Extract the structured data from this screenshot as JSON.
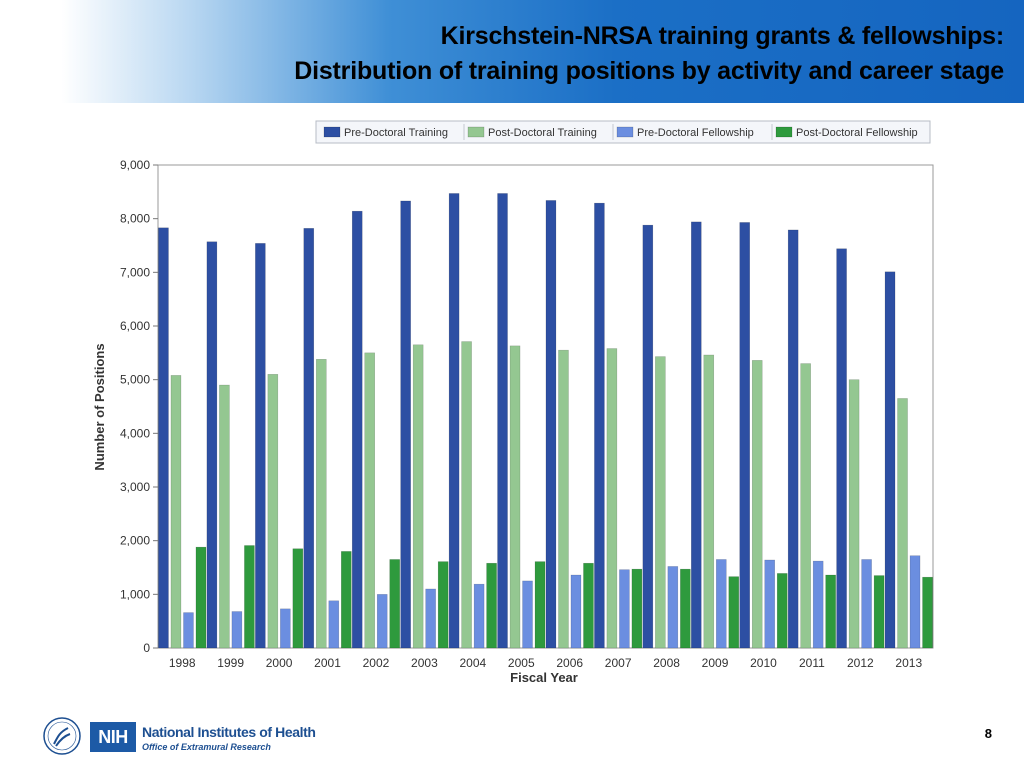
{
  "header": {
    "title_line1": "Kirschstein-NRSA training grants & fellowships:",
    "title_line2": "Distribution of training positions by activity and career stage"
  },
  "chart_data": {
    "type": "bar",
    "categories": [
      "1998",
      "1999",
      "2000",
      "2001",
      "2002",
      "2003",
      "2004",
      "2005",
      "2006",
      "2007",
      "2008",
      "2009",
      "2010",
      "2011",
      "2012",
      "2013"
    ],
    "series": [
      {
        "name": "Pre-Doctoral Training",
        "color": "#2d4fa3",
        "values": [
          7830,
          7570,
          7540,
          7820,
          8140,
          8330,
          8470,
          8470,
          8340,
          8290,
          7880,
          7940,
          7930,
          7790,
          7440,
          7010
        ]
      },
      {
        "name": "Post-Doctoral Training",
        "color": "#94c791",
        "values": [
          5080,
          4900,
          5100,
          5380,
          5500,
          5650,
          5710,
          5630,
          5550,
          5580,
          5430,
          5460,
          5360,
          5300,
          5000,
          4650
        ]
      },
      {
        "name": "Pre-Doctoral Fellowship",
        "color": "#6b8ee0",
        "values": [
          660,
          680,
          730,
          880,
          1000,
          1100,
          1190,
          1250,
          1360,
          1460,
          1520,
          1650,
          1640,
          1620,
          1650,
          1720
        ]
      },
      {
        "name": "Post-Doctoral Fellowship",
        "color": "#2e9a3d",
        "values": [
          1880,
          1910,
          1850,
          1800,
          1650,
          1610,
          1580,
          1610,
          1580,
          1470,
          1470,
          1330,
          1390,
          1360,
          1350,
          1320
        ]
      }
    ],
    "xlabel": "Fiscal Year",
    "ylabel": "Number of Positions",
    "ylim": [
      0,
      9000
    ],
    "yticks": [
      0,
      1000,
      2000,
      3000,
      4000,
      5000,
      6000,
      7000,
      8000,
      9000
    ],
    "ytick_labels": [
      "0",
      "1,000",
      "2,000",
      "3,000",
      "4,000",
      "5,000",
      "6,000",
      "7,000",
      "8,000",
      "9,000"
    ],
    "legend_position": "top",
    "grid": false
  },
  "footer": {
    "org_name": "National Institutes of Health",
    "office": "Office of Extramural Research",
    "logo_text": "NIH",
    "page_number": "8"
  }
}
